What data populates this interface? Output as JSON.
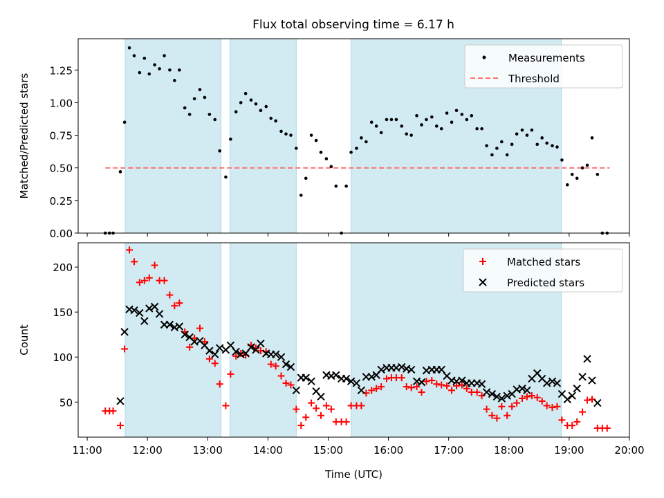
{
  "title": "Flux total observing time = 6.17 h",
  "colors": {
    "band": "#add8e6",
    "measurement": "#000000",
    "threshold": "#ff7070",
    "matched": "#ff0000",
    "predicted": "#000000"
  },
  "chart_data": [
    {
      "type": "scatter",
      "xlabel": "",
      "ylabel": "Matched/Predicted stars",
      "xlim": [
        10.85,
        20.0
      ],
      "ylim": [
        0.0,
        1.49
      ],
      "yticks": [
        0.0,
        0.25,
        0.5,
        0.75,
        1.0,
        1.25
      ],
      "ytick_labels": [
        "0.00",
        "0.25",
        "0.50",
        "0.75",
        "1.00",
        "1.25"
      ],
      "observing_windows": [
        [
          11.63,
          13.22
        ],
        [
          13.37,
          14.47
        ],
        [
          15.38,
          18.87
        ]
      ],
      "threshold": {
        "name": "Threshold",
        "value": 0.5,
        "x_range": [
          11.3,
          19.67
        ]
      },
      "legend": {
        "position": "top-right",
        "entries": [
          "Measurements",
          "Threshold"
        ]
      },
      "series": [
        {
          "name": "Measurements",
          "x": [
            11.3,
            11.37,
            11.43,
            11.55,
            11.62,
            11.7,
            11.78,
            11.87,
            11.95,
            12.03,
            12.12,
            12.2,
            12.28,
            12.37,
            12.45,
            12.53,
            12.62,
            12.7,
            12.78,
            12.87,
            12.95,
            13.03,
            13.12,
            13.2,
            13.3,
            13.38,
            13.47,
            13.55,
            13.63,
            13.72,
            13.8,
            13.88,
            13.97,
            14.05,
            14.13,
            14.22,
            14.3,
            14.38,
            14.47,
            14.55,
            14.63,
            14.72,
            14.8,
            14.88,
            14.97,
            15.05,
            15.13,
            15.22,
            15.3,
            15.38,
            15.47,
            15.55,
            15.63,
            15.72,
            15.8,
            15.88,
            15.97,
            16.05,
            16.13,
            16.22,
            16.3,
            16.38,
            16.47,
            16.55,
            16.63,
            16.72,
            16.8,
            16.88,
            16.97,
            17.05,
            17.13,
            17.22,
            17.3,
            17.38,
            17.47,
            17.55,
            17.63,
            17.72,
            17.8,
            17.88,
            17.97,
            18.05,
            18.13,
            18.22,
            18.3,
            18.38,
            18.47,
            18.55,
            18.63,
            18.72,
            18.8,
            18.88,
            18.97,
            19.05,
            19.13,
            19.22,
            19.3,
            19.38,
            19.47,
            19.55,
            19.63
          ],
          "y": [
            0.0,
            0.0,
            0.0,
            0.47,
            0.85,
            1.42,
            1.36,
            1.23,
            1.34,
            1.22,
            1.29,
            1.26,
            1.36,
            1.25,
            1.17,
            1.25,
            0.96,
            0.91,
            1.03,
            1.1,
            1.04,
            0.91,
            0.87,
            0.63,
            0.43,
            0.72,
            0.93,
            1.0,
            1.07,
            1.02,
            0.99,
            0.94,
            0.97,
            0.88,
            0.86,
            0.78,
            0.76,
            0.75,
            0.65,
            0.29,
            0.42,
            0.75,
            0.71,
            0.62,
            0.57,
            0.51,
            0.36,
            0.0,
            0.36,
            0.62,
            0.65,
            0.73,
            0.7,
            0.85,
            0.82,
            0.77,
            0.87,
            0.87,
            0.87,
            0.82,
            0.76,
            0.75,
            0.9,
            0.83,
            0.87,
            0.89,
            0.82,
            0.8,
            0.92,
            0.85,
            0.94,
            0.91,
            0.87,
            0.9,
            0.8,
            0.8,
            0.67,
            0.6,
            0.65,
            0.7,
            0.6,
            0.68,
            0.76,
            0.79,
            0.75,
            0.79,
            0.68,
            0.73,
            0.69,
            0.67,
            0.66,
            0.56,
            0.37,
            0.45,
            0.42,
            0.5,
            0.52,
            0.73,
            0.45,
            0.0,
            0.0
          ]
        }
      ]
    },
    {
      "type": "scatter",
      "xlabel": "Time (UTC)",
      "ylabel": "Count",
      "xlim": [
        10.85,
        20.0
      ],
      "ylim": [
        11,
        227
      ],
      "yticks": [
        50,
        100,
        150,
        200
      ],
      "ytick_labels": [
        "50",
        "100",
        "150",
        "200"
      ],
      "xticks": [
        11,
        12,
        13,
        14,
        15,
        16,
        17,
        18,
        19,
        20
      ],
      "xtick_labels": [
        "11:00",
        "12:00",
        "13:00",
        "14:00",
        "15:00",
        "16:00",
        "17:00",
        "18:00",
        "19:00",
        "20:00"
      ],
      "observing_windows": [
        [
          11.63,
          13.22
        ],
        [
          13.37,
          14.47
        ],
        [
          15.38,
          18.87
        ]
      ],
      "legend": {
        "position": "top-right",
        "entries": [
          "Matched stars",
          "Predicted stars"
        ]
      },
      "series": [
        {
          "name": "Matched stars",
          "marker": "plus",
          "x": [
            11.3,
            11.37,
            11.43,
            11.55,
            11.62,
            11.7,
            11.78,
            11.87,
            11.95,
            12.03,
            12.12,
            12.2,
            12.28,
            12.37,
            12.45,
            12.53,
            12.62,
            12.7,
            12.78,
            12.87,
            12.95,
            13.03,
            13.12,
            13.2,
            13.3,
            13.38,
            13.47,
            13.55,
            13.63,
            13.72,
            13.8,
            13.88,
            13.97,
            14.05,
            14.13,
            14.22,
            14.3,
            14.38,
            14.47,
            14.55,
            14.63,
            14.72,
            14.8,
            14.88,
            14.97,
            15.05,
            15.13,
            15.22,
            15.3,
            15.38,
            15.47,
            15.55,
            15.63,
            15.72,
            15.8,
            15.88,
            15.97,
            16.05,
            16.13,
            16.22,
            16.3,
            16.38,
            16.47,
            16.55,
            16.63,
            16.72,
            16.8,
            16.88,
            16.97,
            17.05,
            17.13,
            17.22,
            17.3,
            17.38,
            17.47,
            17.55,
            17.63,
            17.72,
            17.8,
            17.88,
            17.97,
            18.05,
            18.13,
            18.22,
            18.3,
            18.38,
            18.47,
            18.55,
            18.63,
            18.72,
            18.8,
            18.88,
            18.97,
            19.05,
            19.13,
            19.22,
            19.3,
            19.38,
            19.47,
            19.55,
            19.63
          ],
          "y": [
            40,
            40,
            40,
            24,
            109,
            219,
            206,
            183,
            185,
            188,
            202,
            185,
            185,
            169,
            157,
            160,
            128,
            111,
            121,
            132,
            117,
            98,
            93,
            70,
            46,
            81,
            101,
            104,
            102,
            113,
            110,
            107,
            106,
            92,
            90,
            79,
            71,
            69,
            42,
            24,
            33,
            49,
            43,
            35,
            46,
            42,
            28,
            28,
            28,
            46,
            46,
            46,
            60,
            63,
            65,
            67,
            76,
            77,
            77,
            77,
            67,
            66,
            67,
            61,
            73,
            74,
            70,
            69,
            68,
            63,
            68,
            69,
            65,
            61,
            61,
            57,
            42,
            35,
            32,
            45,
            35,
            45,
            49,
            54,
            56,
            57,
            55,
            51,
            46,
            44,
            45,
            30,
            24,
            24,
            28,
            39,
            52,
            53,
            21,
            21,
            21
          ]
        },
        {
          "name": "Predicted stars",
          "marker": "x",
          "x": [
            11.55,
            11.62,
            11.7,
            11.78,
            11.87,
            11.95,
            12.03,
            12.12,
            12.2,
            12.28,
            12.37,
            12.45,
            12.53,
            12.62,
            12.7,
            12.78,
            12.87,
            12.95,
            13.03,
            13.12,
            13.2,
            13.3,
            13.38,
            13.47,
            13.55,
            13.63,
            13.72,
            13.8,
            13.88,
            13.97,
            14.05,
            14.13,
            14.22,
            14.3,
            14.38,
            14.47,
            14.55,
            14.63,
            14.72,
            14.8,
            14.88,
            14.97,
            15.05,
            15.13,
            15.22,
            15.3,
            15.38,
            15.47,
            15.55,
            15.63,
            15.72,
            15.8,
            15.88,
            15.97,
            16.05,
            16.13,
            16.22,
            16.3,
            16.38,
            16.47,
            16.55,
            16.63,
            16.72,
            16.8,
            16.88,
            16.97,
            17.05,
            17.13,
            17.22,
            17.3,
            17.38,
            17.47,
            17.55,
            17.63,
            17.72,
            17.8,
            17.88,
            17.97,
            18.05,
            18.13,
            18.22,
            18.3,
            18.38,
            18.47,
            18.55,
            18.63,
            18.72,
            18.8,
            18.88,
            18.97,
            19.05,
            19.13,
            19.22,
            19.3,
            19.38,
            19.47
          ],
          "y": [
            51,
            128,
            153,
            152,
            149,
            140,
            154,
            156,
            148,
            136,
            136,
            133,
            134,
            125,
            122,
            117,
            118,
            113,
            107,
            103,
            110,
            108,
            113,
            106,
            103,
            104,
            111,
            108,
            115,
            104,
            103,
            103,
            100,
            92,
            89,
            63,
            77,
            77,
            73,
            62,
            56,
            80,
            79,
            80,
            76,
            76,
            73,
            71,
            63,
            78,
            78,
            80,
            86,
            88,
            88,
            88,
            89,
            87,
            86,
            73,
            72,
            85,
            86,
            86,
            86,
            79,
            74,
            73,
            74,
            71,
            71,
            71,
            70,
            61,
            59,
            56,
            54,
            57,
            59,
            64,
            65,
            63,
            76,
            82,
            76,
            71,
            73,
            71,
            59,
            53,
            57,
            65,
            78,
            98,
            74,
            49
          ]
        }
      ]
    }
  ]
}
